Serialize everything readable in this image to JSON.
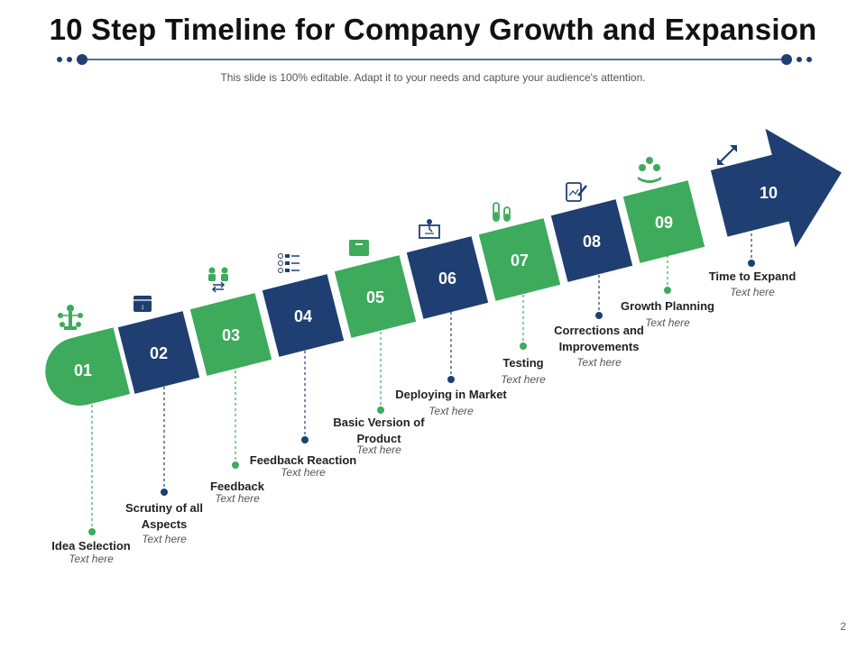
{
  "title": "10 Step Timeline for Company Growth and Expansion",
  "subtitle": "This slide is 100% editable. Adapt it to your needs and capture your audience's attention.",
  "page_number": "2",
  "colors": {
    "green": "#3daa5c",
    "navy": "#1f3f73",
    "title_rule": "#1f3f73"
  },
  "steps": [
    {
      "num": "01",
      "label": "Idea Selection",
      "sub": "Text here",
      "color": "green",
      "icon": "org-tree-icon"
    },
    {
      "num": "02",
      "label": "Scrutiny of all Aspects",
      "sub": "Text here",
      "color": "navy",
      "icon": "document-icon"
    },
    {
      "num": "03",
      "label": "Feedback",
      "sub": "Text here",
      "color": "green",
      "icon": "people-exchange-icon"
    },
    {
      "num": "04",
      "label": "Feedback Reaction",
      "sub": "Text here",
      "color": "navy",
      "icon": "checklist-icon"
    },
    {
      "num": "05",
      "label": "Basic Version of Product",
      "sub": "Text here",
      "color": "green",
      "icon": "product-box-icon"
    },
    {
      "num": "06",
      "label": "Deploying in Market",
      "sub": "Text here",
      "color": "navy",
      "icon": "market-stand-icon"
    },
    {
      "num": "07",
      "label": "Testing",
      "sub": "Text here",
      "color": "green",
      "icon": "test-tubes-icon"
    },
    {
      "num": "08",
      "label": "Corrections and Improvements",
      "sub": "Text here",
      "color": "navy",
      "icon": "edit-chart-icon"
    },
    {
      "num": "09",
      "label": "Growth Planning",
      "sub": "Text here",
      "color": "green",
      "icon": "money-growth-icon"
    },
    {
      "num": "10",
      "label": "Time to Expand",
      "sub": "Text here",
      "color": "navy",
      "icon": "expand-arrows-icon"
    }
  ]
}
